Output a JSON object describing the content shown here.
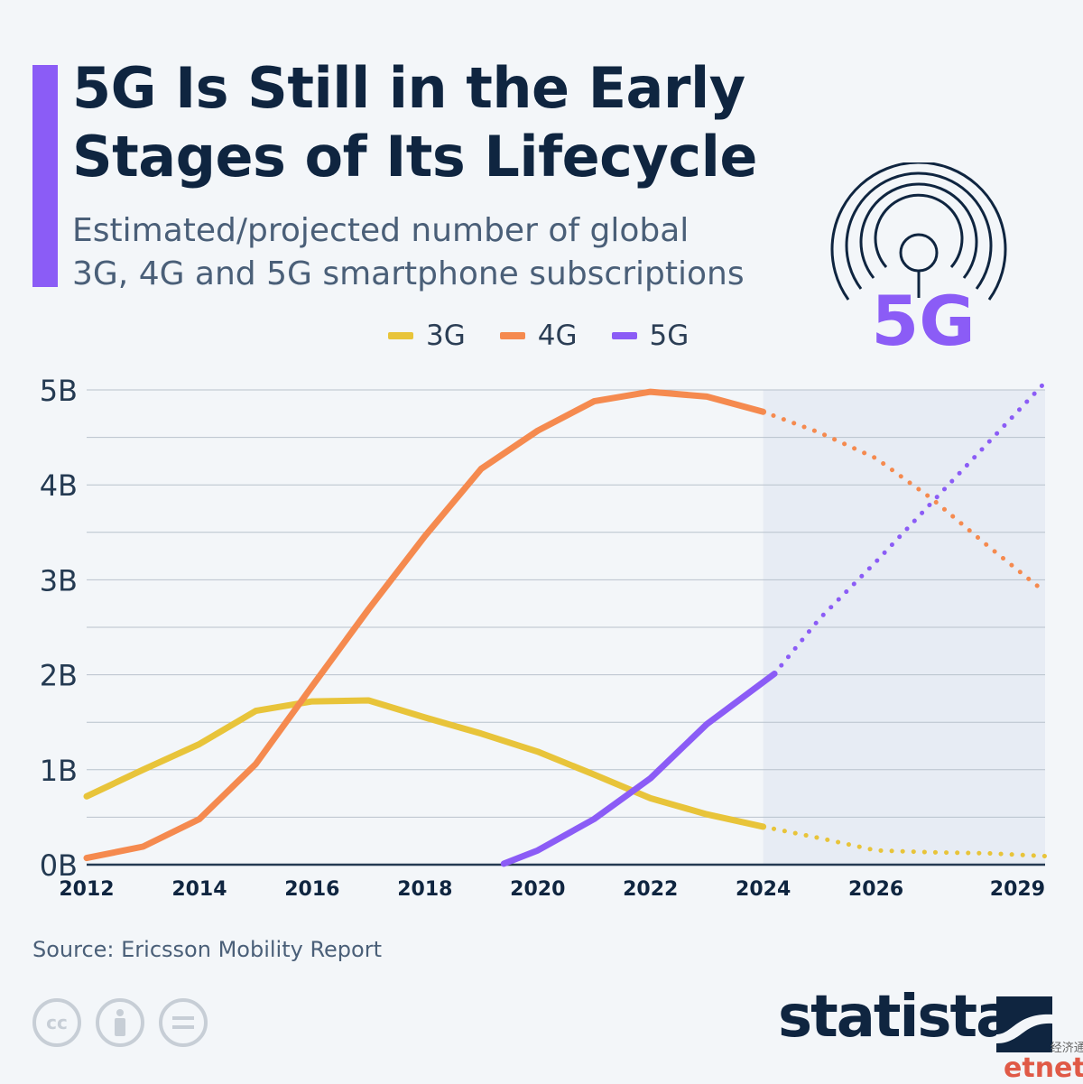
{
  "header": {
    "title": "5G Is Still in the Early Stages of Its Lifecycle",
    "subtitle": "Estimated/projected number of global\n3G, 4G and 5G smartphone subscriptions",
    "icon_label": "5G",
    "accent_color": "#8b5cf6"
  },
  "legend": [
    {
      "name": "3G",
      "color": "#e8c43a"
    },
    {
      "name": "4G",
      "color": "#f58a4f"
    },
    {
      "name": "5G",
      "color": "#8b5cf6"
    }
  ],
  "chart_data": {
    "type": "line",
    "title": "5G Is Still in the Early Stages of Its Lifecycle",
    "subtitle": "Estimated/projected number of global 3G, 4G and 5G smartphone subscriptions",
    "xlabel": "",
    "ylabel": "",
    "x_ticks": [
      "2012",
      "2014",
      "2016",
      "2018",
      "2020",
      "2022",
      "2024",
      "2026",
      "2029"
    ],
    "y_ticks": [
      "0B",
      "1B",
      "2B",
      "3B",
      "4B",
      "5B"
    ],
    "ylim": [
      0,
      5
    ],
    "xlim": [
      2012,
      2029
    ],
    "y_unit": "billion subscriptions",
    "grid": true,
    "legend_position": "top",
    "projected_from": 2024,
    "series": [
      {
        "name": "3G",
        "color": "#e8c43a",
        "points": [
          [
            2012,
            0.72
          ],
          [
            2013,
            1.0
          ],
          [
            2014,
            1.27
          ],
          [
            2015,
            1.62
          ],
          [
            2016,
            1.72
          ],
          [
            2017,
            1.73
          ],
          [
            2018,
            1.55
          ],
          [
            2019,
            1.38
          ],
          [
            2020,
            1.19
          ],
          [
            2021,
            0.95
          ],
          [
            2022,
            0.7
          ],
          [
            2023,
            0.53
          ],
          [
            2024,
            0.4
          ],
          [
            2025,
            0.28
          ],
          [
            2026,
            0.15
          ],
          [
            2027,
            0.13
          ],
          [
            2028,
            0.12
          ],
          [
            2029,
            0.09
          ]
        ]
      },
      {
        "name": "4G",
        "color": "#f58a4f",
        "points": [
          [
            2012,
            0.07
          ],
          [
            2013,
            0.19
          ],
          [
            2014,
            0.48
          ],
          [
            2015,
            1.06
          ],
          [
            2016,
            1.88
          ],
          [
            2017,
            2.69
          ],
          [
            2018,
            3.46
          ],
          [
            2019,
            4.17
          ],
          [
            2020,
            4.57
          ],
          [
            2021,
            4.88
          ],
          [
            2022,
            4.98
          ],
          [
            2023,
            4.93
          ],
          [
            2024,
            4.77
          ],
          [
            2025,
            4.55
          ],
          [
            2026,
            4.28
          ],
          [
            2027,
            3.85
          ],
          [
            2028,
            3.35
          ],
          [
            2029,
            2.87
          ]
        ]
      },
      {
        "name": "5G",
        "color": "#8b5cf6",
        "points": [
          [
            2019.4,
            0.01
          ],
          [
            2020,
            0.15
          ],
          [
            2021,
            0.48
          ],
          [
            2022,
            0.91
          ],
          [
            2023,
            1.48
          ],
          [
            2024.2,
            2.01
          ],
          [
            2025,
            2.59
          ],
          [
            2026,
            3.19
          ],
          [
            2027,
            3.82
          ],
          [
            2028,
            4.45
          ],
          [
            2029,
            5.08
          ]
        ]
      }
    ]
  },
  "footer": {
    "source": "Source: Ericsson Mobility Report",
    "brand": "statista",
    "watermark_cn": "经济通",
    "watermark": "etnet"
  },
  "icons": [
    "cc-icon",
    "attribution-icon",
    "no-derivatives-icon",
    "statista-logo-icon",
    "5g-antenna-icon"
  ]
}
